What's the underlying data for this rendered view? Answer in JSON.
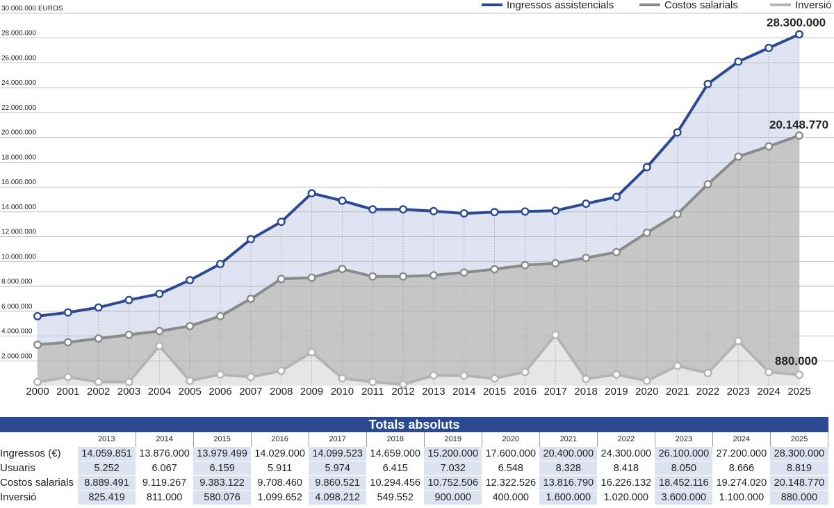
{
  "chart_data": {
    "type": "line",
    "ylabel": "30.000.000 EUROS",
    "ylim": [
      0,
      30000000
    ],
    "y_ticks": [
      "2.000.000",
      "4.000.000",
      "6.000.000",
      "8.000.000",
      "10.000.000",
      "12.000.000",
      "14.000.000",
      "16.000.000",
      "18.000.000",
      "20.000.000",
      "22.000.000",
      "24.000.000",
      "26.000.000",
      "28.000.000"
    ],
    "grid": true,
    "legend_position": "top-right",
    "categories": [
      "2000",
      "2001",
      "2002",
      "2003",
      "2004",
      "2005",
      "2006",
      "2007",
      "2008",
      "2009",
      "2010",
      "2011",
      "2012",
      "2013",
      "2014",
      "2015",
      "2016",
      "2017",
      "2018",
      "2019",
      "2020",
      "2021",
      "2022",
      "2023",
      "2024",
      "2025"
    ],
    "series": [
      {
        "name": "Ingressos assistencials",
        "color": "#2c4a92",
        "fill": "#dfe3f2",
        "values": [
          5600000,
          5900000,
          6300000,
          6900000,
          7400000,
          8500000,
          9800000,
          11800000,
          13200000,
          15500000,
          14900000,
          14200000,
          14200000,
          14059851,
          13876000,
          13979499,
          14029000,
          14099523,
          14659000,
          15200000,
          17600000,
          20400000,
          24300000,
          26100000,
          27200000,
          28300000
        ]
      },
      {
        "name": "Costos salarials",
        "color": "#8a8a8a",
        "fill": "#c6c6c6",
        "values": [
          3300000,
          3500000,
          3800000,
          4100000,
          4400000,
          4800000,
          5600000,
          7000000,
          8600000,
          8700000,
          9400000,
          8800000,
          8800000,
          8889491,
          9119267,
          9383122,
          9708460,
          9860521,
          10294456,
          10752506,
          12322526,
          13816790,
          16226132,
          18452116,
          19274020,
          20148770
        ]
      },
      {
        "name": "Inversió",
        "color": "#b4b4b4",
        "fill": "#e6e6e6",
        "values": [
          300000,
          700000,
          300000,
          300000,
          3200000,
          400000,
          900000,
          700000,
          1200000,
          2700000,
          600000,
          300000,
          100000,
          825419,
          811000,
          580076,
          1099652,
          4098212,
          549552,
          900000,
          400000,
          1600000,
          1020000,
          3600000,
          1100000,
          880000
        ]
      }
    ],
    "annotations": [
      "28.300.000",
      "20.148.770",
      "880.000"
    ]
  },
  "totals": {
    "title": "Totals absoluts",
    "years": [
      "2013",
      "2014",
      "2015",
      "2016",
      "2017",
      "2018",
      "2019",
      "2020",
      "2021",
      "2022",
      "2023",
      "2024",
      "2025"
    ],
    "rows": [
      {
        "label": "Ingressos (€)",
        "values": [
          "14.059.851",
          "13.876.000",
          "13.979.499",
          "14.029.000",
          "14.099.523",
          "14.659.000",
          "15.200.000",
          "17.600.000",
          "20.400.000",
          "24.300.000",
          "26.100.000",
          "27.200.000",
          "28.300.000"
        ]
      },
      {
        "label": "Usuaris",
        "values": [
          "5.252",
          "6.067",
          "6.159",
          "5.911",
          "5.974",
          "6.415",
          "7.032",
          "6.548",
          "8.328",
          "8.418",
          "8.050",
          "8.666",
          "8.819"
        ]
      },
      {
        "label": "Costos salarials",
        "values": [
          "8.889.491",
          "9.119.267",
          "9.383.122",
          "9.708.460",
          "9.860.521",
          "10.294.456",
          "10.752.506",
          "12.322.526",
          "13.816.790",
          "16.226.132",
          "18.452.116",
          "19.274.020",
          "20.148.770"
        ]
      },
      {
        "label": "Inversió",
        "values": [
          "825.419",
          "811.000",
          "580.076",
          "1.099.652",
          "4.098.212",
          "549.552",
          "900.000",
          "400.000",
          "1.600.000",
          "1.020.000",
          "3.600.000",
          "1.100.000",
          "880.000"
        ]
      }
    ]
  }
}
